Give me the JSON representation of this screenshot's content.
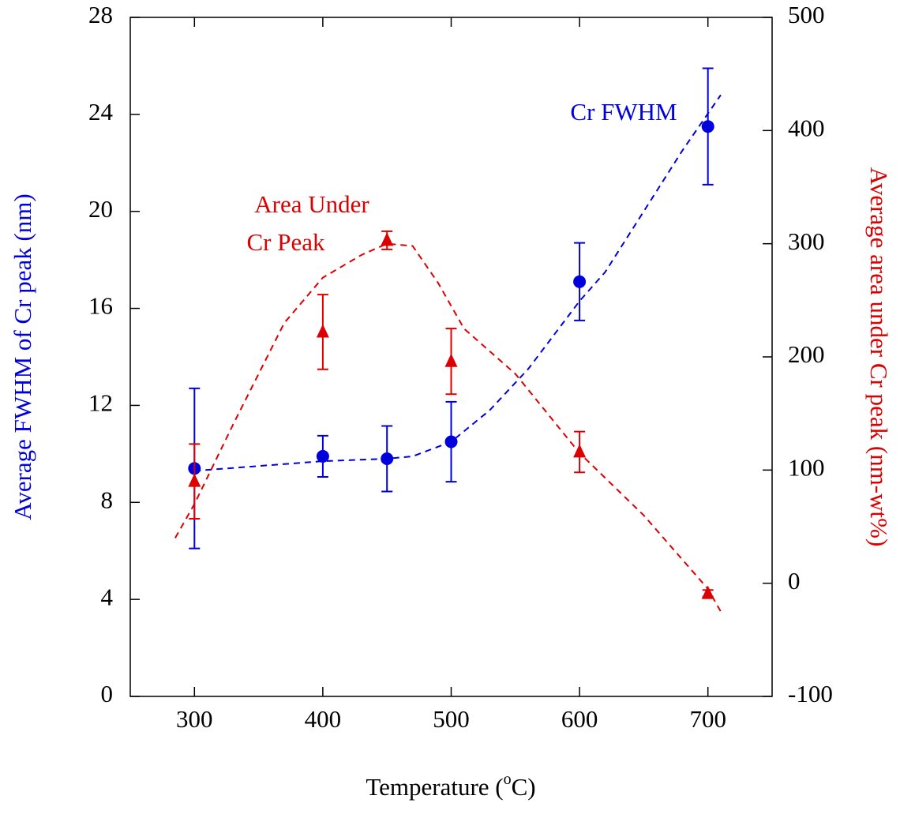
{
  "chart_data": {
    "type": "line",
    "x_label": [
      "Temperature (",
      "o",
      "C)"
    ],
    "y_label": "Average FWHM of Cr peak (nm)",
    "y2_label": "Average area under Cr peak (nm-wt%)",
    "x": [
      300,
      400,
      450,
      500,
      600,
      700
    ],
    "xlim": [
      250,
      750
    ],
    "xticks": [
      300,
      400,
      500,
      600,
      700
    ],
    "ylim": [
      0,
      28
    ],
    "yticks": [
      0,
      4,
      8,
      12,
      16,
      20,
      24,
      28
    ],
    "y2lim": [
      -100,
      500
    ],
    "y2ticks": [
      -100,
      0,
      100,
      200,
      300,
      400,
      500
    ],
    "series": [
      {
        "color": "#0000dd",
        "marker": "circle",
        "values": [
          9.4,
          9.9,
          9.8,
          10.5,
          17.1,
          23.5
        ],
        "errors": [
          3.3,
          0.85,
          1.35,
          1.65,
          1.6,
          2.4
        ]
      },
      {
        "color": "#dd0000",
        "marker": "triangle",
        "axis": "y2",
        "values": [
          90,
          222,
          303,
          196,
          116,
          -9
        ],
        "errors": [
          33,
          33,
          8,
          29,
          18,
          3
        ]
      }
    ],
    "fit_lines": [
      {
        "color": "#0000dd",
        "x": [
          300,
          400,
          450,
          470,
          500,
          530,
          560,
          600,
          620,
          650,
          680,
          710
        ],
        "values": [
          9.3,
          9.7,
          9.8,
          9.9,
          10.5,
          11.8,
          13.5,
          16.3,
          17.5,
          20,
          22.5,
          24.8
        ]
      },
      {
        "color": "#dd0000",
        "axis": "y2",
        "x": [
          285,
          300,
          330,
          370,
          400,
          430,
          450,
          470,
          490,
          510,
          550,
          600,
          650,
          700,
          710
        ],
        "values": [
          40,
          70,
          140,
          230,
          270,
          290,
          300,
          298,
          265,
          225,
          185,
          115,
          60,
          -5,
          -25
        ]
      }
    ],
    "annotations": [
      {
        "color": "#0000dd",
        "lines": [
          "Cr FWHM"
        ]
      },
      {
        "color": "#dd0000",
        "lines": [
          "Area Under",
          "Cr Peak"
        ]
      }
    ]
  }
}
